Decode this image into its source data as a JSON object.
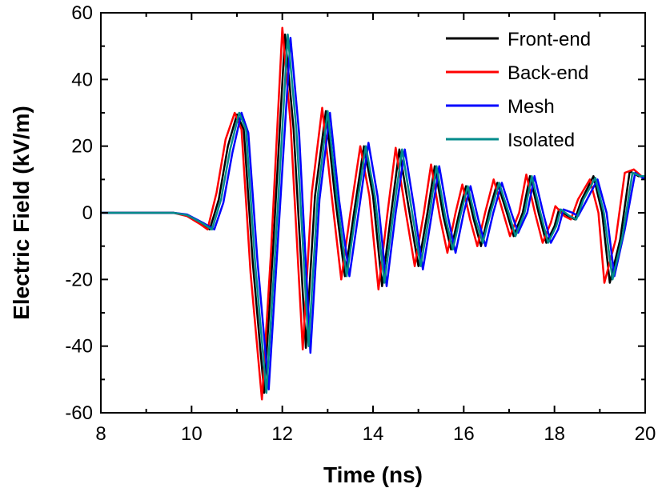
{
  "chart_data": {
    "type": "line",
    "title": "",
    "xlabel": "Time (ns)",
    "ylabel": "Electric Field (kV/m)",
    "xlim": [
      8,
      20
    ],
    "ylim": [
      -60,
      60
    ],
    "xticks": [
      8,
      10,
      12,
      14,
      16,
      18,
      20
    ],
    "yticks": [
      -60,
      -40,
      -20,
      0,
      20,
      40,
      60
    ],
    "grid": false,
    "legend_position": "top-right",
    "series": [
      {
        "name": "Front-end",
        "color": "#000000",
        "points": [
          [
            8,
            0
          ],
          [
            9.6,
            0
          ],
          [
            9.9,
            -0.8
          ],
          [
            10.2,
            -3
          ],
          [
            10.4,
            -5
          ],
          [
            10.6,
            4
          ],
          [
            10.8,
            20
          ],
          [
            11.0,
            29.5
          ],
          [
            11.15,
            25
          ],
          [
            11.35,
            -15
          ],
          [
            11.6,
            -54
          ],
          [
            11.8,
            -10
          ],
          [
            12.06,
            53.5
          ],
          [
            12.25,
            25
          ],
          [
            12.52,
            -40.5
          ],
          [
            12.72,
            5
          ],
          [
            12.96,
            30.5
          ],
          [
            13.16,
            5
          ],
          [
            13.38,
            -19
          ],
          [
            13.58,
            0
          ],
          [
            13.8,
            20
          ],
          [
            14.0,
            5
          ],
          [
            14.2,
            -22
          ],
          [
            14.4,
            0
          ],
          [
            14.58,
            19
          ],
          [
            14.78,
            2
          ],
          [
            15.0,
            -16
          ],
          [
            15.2,
            0
          ],
          [
            15.36,
            14
          ],
          [
            15.55,
            -1
          ],
          [
            15.72,
            -11
          ],
          [
            15.9,
            0
          ],
          [
            16.05,
            8
          ],
          [
            16.22,
            -2
          ],
          [
            16.38,
            -10
          ],
          [
            16.55,
            0
          ],
          [
            16.74,
            9
          ],
          [
            16.95,
            0
          ],
          [
            17.1,
            -7
          ],
          [
            17.3,
            0
          ],
          [
            17.46,
            11
          ],
          [
            17.65,
            0
          ],
          [
            17.82,
            -9
          ],
          [
            18.0,
            -4
          ],
          [
            18.1,
            1
          ],
          [
            18.3,
            -1
          ],
          [
            18.45,
            -2
          ],
          [
            18.6,
            4
          ],
          [
            18.86,
            11
          ],
          [
            19.05,
            0
          ],
          [
            19.22,
            -21
          ],
          [
            19.45,
            -8
          ],
          [
            19.66,
            12.5
          ],
          [
            19.85,
            11
          ],
          [
            20,
            11
          ]
        ]
      },
      {
        "name": "Back-end",
        "color": "#ff0000",
        "points": [
          [
            8,
            0
          ],
          [
            9.6,
            0
          ],
          [
            9.9,
            -1
          ],
          [
            10.2,
            -3.5
          ],
          [
            10.35,
            -5
          ],
          [
            10.55,
            6
          ],
          [
            10.75,
            22
          ],
          [
            10.95,
            30
          ],
          [
            11.1,
            25
          ],
          [
            11.3,
            -18
          ],
          [
            11.55,
            -56
          ],
          [
            11.75,
            -12
          ],
          [
            12.0,
            55.5
          ],
          [
            12.18,
            27
          ],
          [
            12.45,
            -41
          ],
          [
            12.65,
            6
          ],
          [
            12.88,
            31.5
          ],
          [
            13.08,
            6
          ],
          [
            13.3,
            -20
          ],
          [
            13.5,
            0
          ],
          [
            13.72,
            20
          ],
          [
            13.92,
            5
          ],
          [
            14.12,
            -23
          ],
          [
            14.32,
            0
          ],
          [
            14.5,
            19.5
          ],
          [
            14.7,
            2
          ],
          [
            14.92,
            -16
          ],
          [
            15.12,
            0
          ],
          [
            15.28,
            14.5
          ],
          [
            15.47,
            -1
          ],
          [
            15.64,
            -12
          ],
          [
            15.82,
            0
          ],
          [
            15.97,
            8.5
          ],
          [
            16.14,
            -2
          ],
          [
            16.3,
            -10
          ],
          [
            16.47,
            0
          ],
          [
            16.66,
            10
          ],
          [
            16.87,
            0
          ],
          [
            17.02,
            -7
          ],
          [
            17.22,
            0
          ],
          [
            17.38,
            11.5
          ],
          [
            17.57,
            0
          ],
          [
            17.74,
            -9
          ],
          [
            17.92,
            -3
          ],
          [
            18.02,
            2
          ],
          [
            18.22,
            -1
          ],
          [
            18.36,
            -2
          ],
          [
            18.52,
            4
          ],
          [
            18.78,
            10
          ],
          [
            18.97,
            0
          ],
          [
            19.1,
            -21
          ],
          [
            19.35,
            -8
          ],
          [
            19.55,
            12
          ],
          [
            19.75,
            13
          ],
          [
            20,
            10
          ]
        ]
      },
      {
        "name": "Mesh",
        "color": "#0000ff",
        "points": [
          [
            8,
            0
          ],
          [
            9.6,
            0
          ],
          [
            9.9,
            -0.5
          ],
          [
            10.25,
            -3
          ],
          [
            10.5,
            -5
          ],
          [
            10.7,
            3
          ],
          [
            10.9,
            18
          ],
          [
            11.1,
            30
          ],
          [
            11.25,
            24
          ],
          [
            11.45,
            -14
          ],
          [
            11.7,
            -53
          ],
          [
            11.9,
            -9
          ],
          [
            12.18,
            52.5
          ],
          [
            12.37,
            24
          ],
          [
            12.62,
            -42
          ],
          [
            12.82,
            4
          ],
          [
            13.05,
            30
          ],
          [
            13.25,
            4
          ],
          [
            13.48,
            -19
          ],
          [
            13.68,
            0
          ],
          [
            13.9,
            21
          ],
          [
            14.1,
            5
          ],
          [
            14.3,
            -22
          ],
          [
            14.5,
            0
          ],
          [
            14.7,
            19
          ],
          [
            14.9,
            2
          ],
          [
            15.1,
            -17
          ],
          [
            15.3,
            0
          ],
          [
            15.46,
            14
          ],
          [
            15.65,
            -1
          ],
          [
            15.82,
            -12
          ],
          [
            16.0,
            0
          ],
          [
            16.15,
            8
          ],
          [
            16.32,
            -2
          ],
          [
            16.48,
            -10
          ],
          [
            16.65,
            0
          ],
          [
            16.84,
            9
          ],
          [
            17.05,
            0
          ],
          [
            17.2,
            -6
          ],
          [
            17.4,
            0
          ],
          [
            17.56,
            11
          ],
          [
            17.75,
            0
          ],
          [
            17.92,
            -9
          ],
          [
            18.08,
            -5
          ],
          [
            18.2,
            1
          ],
          [
            18.4,
            0
          ],
          [
            18.52,
            -1
          ],
          [
            18.68,
            3
          ],
          [
            18.95,
            10
          ],
          [
            19.15,
            0
          ],
          [
            19.32,
            -19
          ],
          [
            19.55,
            -5
          ],
          [
            19.78,
            12
          ],
          [
            20,
            10
          ]
        ]
      },
      {
        "name": "Isolated",
        "color": "#008b8b",
        "points": [
          [
            8,
            0
          ],
          [
            9.6,
            0
          ],
          [
            9.9,
            -0.7
          ],
          [
            10.22,
            -3
          ],
          [
            10.45,
            -5
          ],
          [
            10.65,
            4
          ],
          [
            10.85,
            19
          ],
          [
            11.05,
            30
          ],
          [
            11.2,
            25
          ],
          [
            11.4,
            -15
          ],
          [
            11.65,
            -54
          ],
          [
            11.85,
            -10
          ],
          [
            12.12,
            53.5
          ],
          [
            12.31,
            25
          ],
          [
            12.58,
            -40
          ],
          [
            12.78,
            5
          ],
          [
            13.0,
            30.5
          ],
          [
            13.2,
            5
          ],
          [
            13.42,
            -19
          ],
          [
            13.62,
            0
          ],
          [
            13.84,
            20
          ],
          [
            14.04,
            5
          ],
          [
            14.25,
            -21
          ],
          [
            14.45,
            0
          ],
          [
            14.64,
            19
          ],
          [
            14.84,
            2
          ],
          [
            15.05,
            -16
          ],
          [
            15.25,
            0
          ],
          [
            15.4,
            14
          ],
          [
            15.59,
            -1
          ],
          [
            15.76,
            -11
          ],
          [
            15.94,
            0
          ],
          [
            16.09,
            8
          ],
          [
            16.26,
            -2
          ],
          [
            16.42,
            -9
          ],
          [
            16.59,
            0
          ],
          [
            16.78,
            9
          ],
          [
            16.99,
            0
          ],
          [
            17.14,
            -7
          ],
          [
            17.34,
            0
          ],
          [
            17.5,
            11
          ],
          [
            17.69,
            0
          ],
          [
            17.86,
            -9
          ],
          [
            18.04,
            -4
          ],
          [
            18.14,
            1
          ],
          [
            18.34,
            -1
          ],
          [
            18.48,
            -2
          ],
          [
            18.64,
            4
          ],
          [
            18.9,
            10.5
          ],
          [
            19.09,
            0
          ],
          [
            19.28,
            -20
          ],
          [
            19.5,
            -7
          ],
          [
            19.72,
            12
          ],
          [
            19.9,
            11
          ],
          [
            20,
            11
          ]
        ]
      }
    ]
  }
}
